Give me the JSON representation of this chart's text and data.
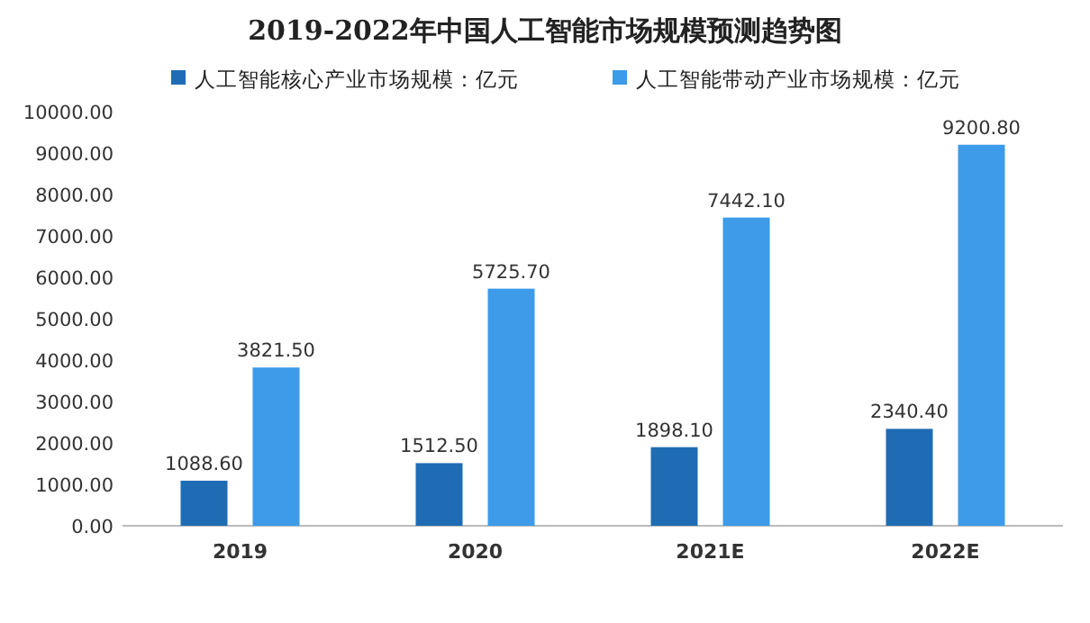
{
  "chart_data": {
    "type": "bar",
    "title": "2019-2022年中国人工智能市场规模预测趋势图",
    "categories": [
      "2019",
      "2020",
      "2021E",
      "2022E"
    ],
    "series": [
      {
        "name": "人工智能核心产业市场规模：亿元",
        "color": "#1f6cb4",
        "values": [
          1088.6,
          1512.5,
          1898.1,
          2340.4
        ]
      },
      {
        "name": "人工智能带动产业市场规模：亿元",
        "color": "#3d9be9",
        "values": [
          3821.5,
          5725.7,
          7442.1,
          9200.8
        ]
      }
    ],
    "ylim": [
      0,
      10000
    ],
    "yticks": [
      {
        "value": 0,
        "label": "0.00"
      },
      {
        "value": 1000,
        "label": "1000.00"
      },
      {
        "value": 2000,
        "label": "2000.00"
      },
      {
        "value": 3000,
        "label": "3000.00"
      },
      {
        "value": 4000,
        "label": "4000.00"
      },
      {
        "value": 5000,
        "label": "5000.00"
      },
      {
        "value": 6000,
        "label": "6000.00"
      },
      {
        "value": 7000,
        "label": "7000.00"
      },
      {
        "value": 8000,
        "label": "8000.00"
      },
      {
        "value": 9000,
        "label": "9000.00"
      },
      {
        "value": 10000,
        "label": "10000.00"
      }
    ],
    "value_labels": [
      [
        "1088.60",
        "1512.50",
        "1898.10",
        "2340.40"
      ],
      [
        "3821.50",
        "5725.70",
        "7442.10",
        "9200.80"
      ]
    ],
    "legend": "top",
    "grid": false
  }
}
